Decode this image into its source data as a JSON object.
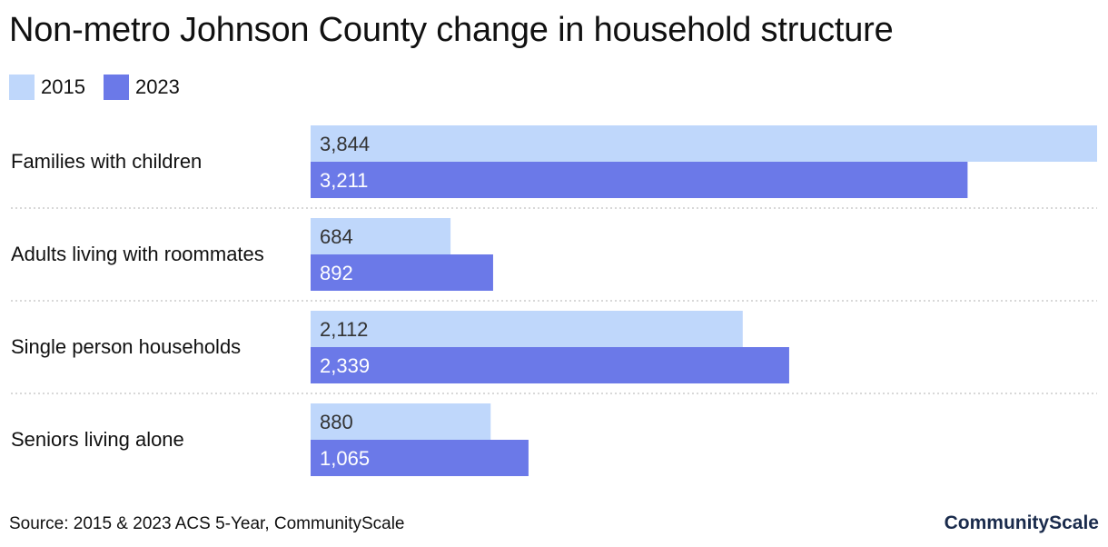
{
  "title": "Non-metro Johnson County change in household structure",
  "source": "Source: 2015 & 2023 ACS 5-Year, CommunityScale",
  "brand": "CommunityScale",
  "colors": {
    "series_2015": "#bfd7fb",
    "series_2023": "#6b79e8",
    "divider": "#cccccc"
  },
  "chart_data": {
    "type": "bar",
    "orientation": "horizontal",
    "legend_position": "top-left",
    "grid": false,
    "categories": [
      "Families with children",
      "Adults living with roommates",
      "Single person households",
      "Seniors living alone"
    ],
    "series": [
      {
        "name": "2015",
        "values": [
          3844,
          684,
          2112,
          880
        ],
        "labels": [
          "3,844",
          "684",
          "2,112",
          "880"
        ]
      },
      {
        "name": "2023",
        "values": [
          3211,
          892,
          2339,
          1065
        ],
        "labels": [
          "3,211",
          "892",
          "2,339",
          "1,065"
        ]
      }
    ],
    "xlim": [
      0,
      3844
    ]
  }
}
